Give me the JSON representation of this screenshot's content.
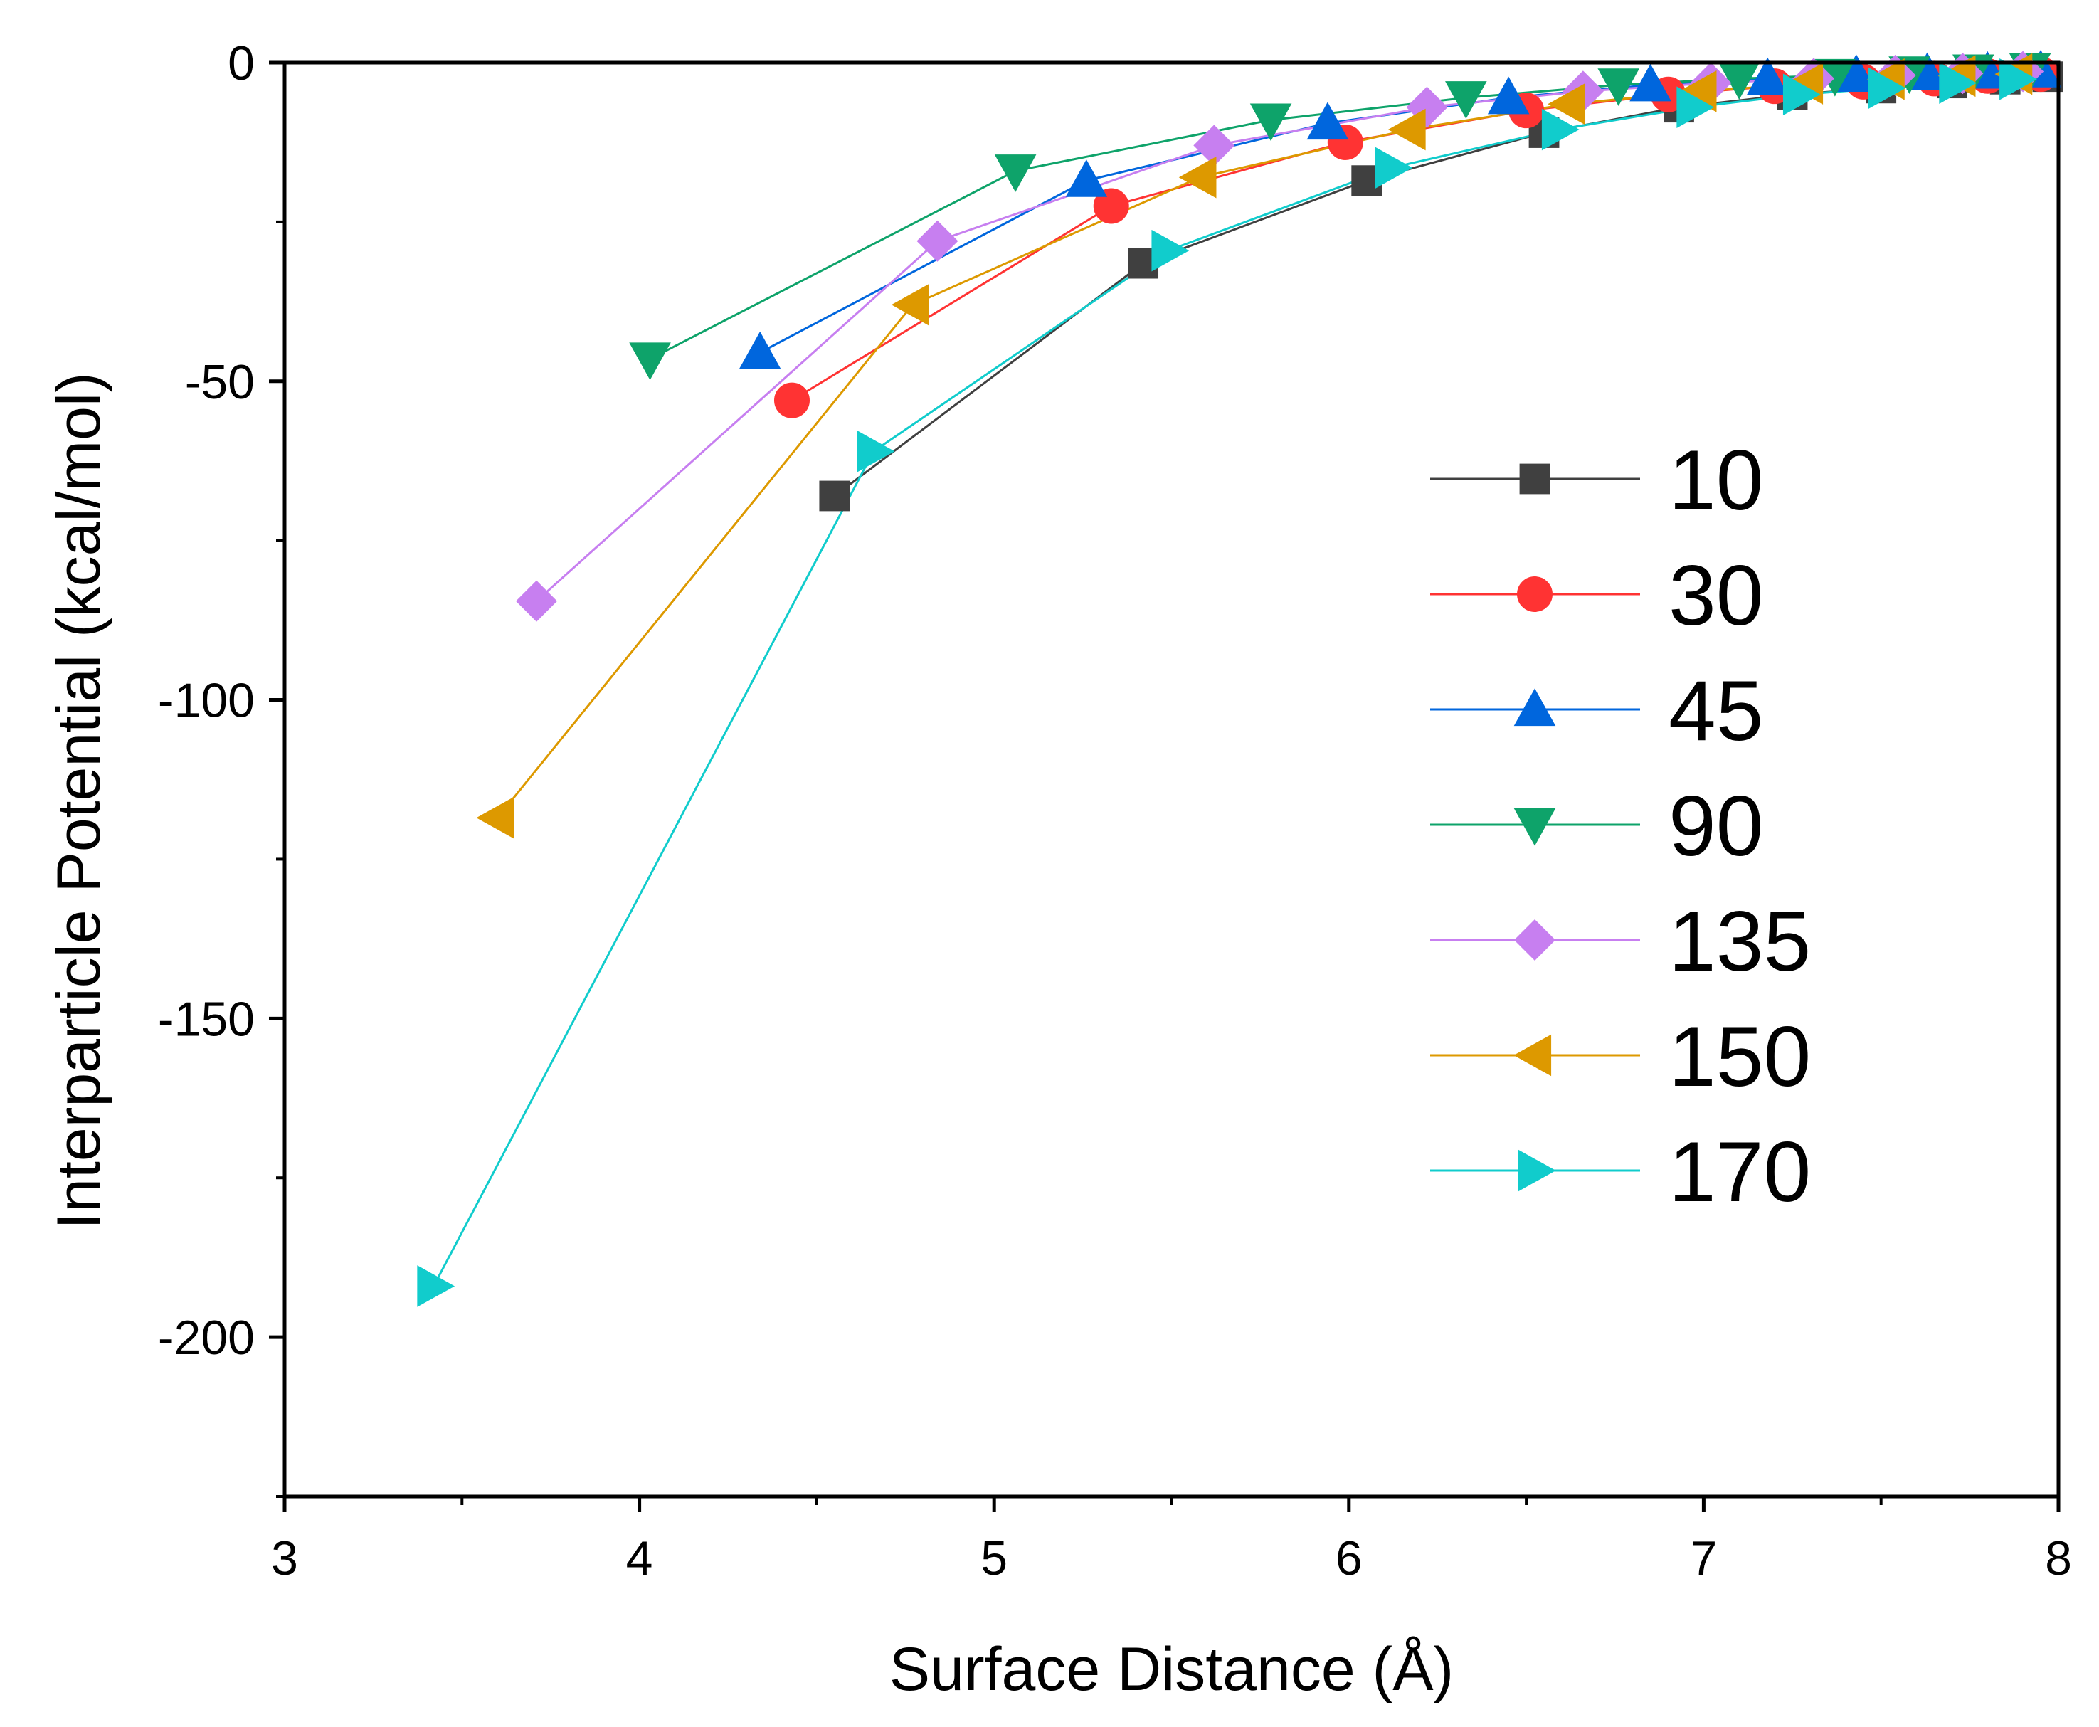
{
  "chart_data": {
    "type": "line",
    "title": "",
    "xlabel": "Surface Distance (Å)",
    "ylabel": "Interparticle Potential (kcal/mol)",
    "xlim": [
      3,
      8
    ],
    "ylim": [
      -225,
      0
    ],
    "xticks": [
      3,
      4,
      5,
      6,
      7,
      8
    ],
    "yticks": [
      0,
      -50,
      -100,
      -150,
      -200
    ],
    "xtick_labels": [
      "3",
      "4",
      "5",
      "6",
      "7",
      "8"
    ],
    "ytick_labels": [
      "0",
      "-50",
      "-100",
      "-150",
      "-200"
    ],
    "grid": false,
    "legend_position": "right",
    "series": [
      {
        "name": "10",
        "color": "#404040",
        "marker": "square",
        "points": [
          [
            4.55,
            -68
          ],
          [
            5.42,
            -31.5
          ],
          [
            6.05,
            -18.5
          ],
          [
            6.55,
            -11
          ],
          [
            6.93,
            -7
          ],
          [
            7.25,
            -5
          ],
          [
            7.5,
            -4
          ],
          [
            7.7,
            -3.2
          ],
          [
            7.85,
            -2.6
          ],
          [
            7.97,
            -2.2
          ]
        ]
      },
      {
        "name": "30",
        "color": "#ff3333",
        "marker": "circle",
        "points": [
          [
            4.43,
            -53
          ],
          [
            5.33,
            -22.5
          ],
          [
            5.99,
            -12.5
          ],
          [
            6.5,
            -7.5
          ],
          [
            6.9,
            -5
          ],
          [
            7.2,
            -3.7
          ],
          [
            7.45,
            -3
          ],
          [
            7.65,
            -2.5
          ],
          [
            7.8,
            -2.1
          ],
          [
            7.95,
            -1.8
          ]
        ]
      },
      {
        "name": "45",
        "color": "#0066dd",
        "marker": "triangle-up",
        "points": [
          [
            4.34,
            -45.5
          ],
          [
            5.26,
            -18.5
          ],
          [
            5.94,
            -9.5
          ],
          [
            6.45,
            -5.5
          ],
          [
            6.85,
            -3.5
          ],
          [
            7.18,
            -2.5
          ],
          [
            7.43,
            -2
          ],
          [
            7.63,
            -1.7
          ],
          [
            7.8,
            -1.5
          ],
          [
            7.95,
            -1.3
          ]
        ]
      },
      {
        "name": "90",
        "color": "#0ea36a",
        "marker": "triangle-down",
        "points": [
          [
            4.03,
            -46.5
          ],
          [
            5.06,
            -17
          ],
          [
            5.78,
            -9
          ],
          [
            6.33,
            -5.5
          ],
          [
            6.76,
            -3.5
          ],
          [
            7.1,
            -2.5
          ],
          [
            7.37,
            -2
          ],
          [
            7.58,
            -1.6
          ],
          [
            7.76,
            -1.3
          ],
          [
            7.92,
            -1.1
          ]
        ]
      },
      {
        "name": "135",
        "color": "#c77ff0",
        "marker": "diamond",
        "points": [
          [
            3.71,
            -84.5
          ],
          [
            4.84,
            -28
          ],
          [
            5.62,
            -13
          ],
          [
            6.22,
            -7
          ],
          [
            6.66,
            -4.5
          ],
          [
            7.02,
            -3.2
          ],
          [
            7.31,
            -2.5
          ],
          [
            7.54,
            -2
          ],
          [
            7.73,
            -1.7
          ],
          [
            7.9,
            -1.4
          ]
        ]
      },
      {
        "name": "150",
        "color": "#dd9900",
        "marker": "triangle-left",
        "points": [
          [
            3.6,
            -118.5
          ],
          [
            4.77,
            -38
          ],
          [
            5.58,
            -18
          ],
          [
            6.17,
            -10.5
          ],
          [
            6.62,
            -6.5
          ],
          [
            6.99,
            -4.5
          ],
          [
            7.29,
            -3.3
          ],
          [
            7.52,
            -2.6
          ],
          [
            7.72,
            -2.1
          ],
          [
            7.88,
            -1.8
          ]
        ]
      },
      {
        "name": "170",
        "color": "#11cccc",
        "marker": "triangle-right",
        "points": [
          [
            3.42,
            -192
          ],
          [
            4.66,
            -61
          ],
          [
            5.49,
            -29.5
          ],
          [
            6.12,
            -16.5
          ],
          [
            6.59,
            -10.5
          ],
          [
            6.97,
            -7
          ],
          [
            7.27,
            -5
          ],
          [
            7.51,
            -4
          ],
          [
            7.71,
            -3.2
          ],
          [
            7.88,
            -2.6
          ]
        ]
      }
    ]
  }
}
